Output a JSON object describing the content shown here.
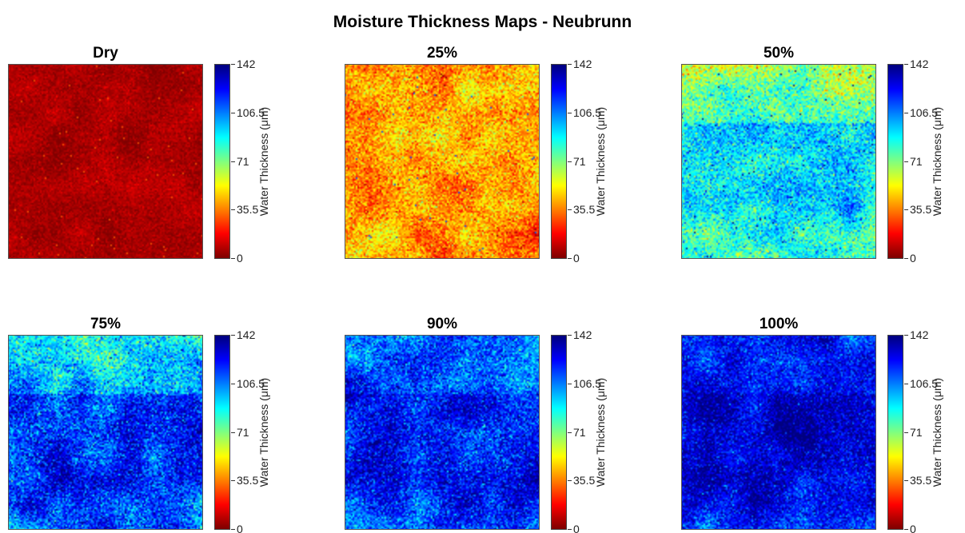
{
  "chart_data": {
    "type": "heatmap",
    "title": "Moisture Thickness Maps - Neubrunn",
    "colormap": "jet-reversed",
    "colorbar": {
      "label": "Water Thickness (μm)",
      "range": [
        0,
        142
      ],
      "ticks": [
        0,
        35.5,
        71,
        106.5,
        142
      ],
      "tick_labels": [
        "0",
        "35.5",
        "71",
        "106.5",
        "142"
      ]
    },
    "panels": [
      {
        "title": "Dry",
        "mean_thickness": 6,
        "upper_band": 6,
        "middle_band": 6,
        "lower_band": 6,
        "noise": 4
      },
      {
        "title": "25%",
        "mean_thickness": 40,
        "upper_band": 38,
        "middle_band": 42,
        "lower_band": 38,
        "noise": 12
      },
      {
        "title": "50%",
        "mean_thickness": 82,
        "upper_band": 64,
        "middle_band": 96,
        "lower_band": 80,
        "noise": 14
      },
      {
        "title": "75%",
        "mean_thickness": 105,
        "upper_band": 84,
        "middle_band": 118,
        "lower_band": 105,
        "noise": 15
      },
      {
        "title": "90%",
        "mean_thickness": 118,
        "upper_band": 108,
        "middle_band": 126,
        "lower_band": 114,
        "noise": 14
      },
      {
        "title": "100%",
        "mean_thickness": 124,
        "upper_band": 118,
        "middle_band": 132,
        "lower_band": 118,
        "noise": 12
      }
    ]
  }
}
